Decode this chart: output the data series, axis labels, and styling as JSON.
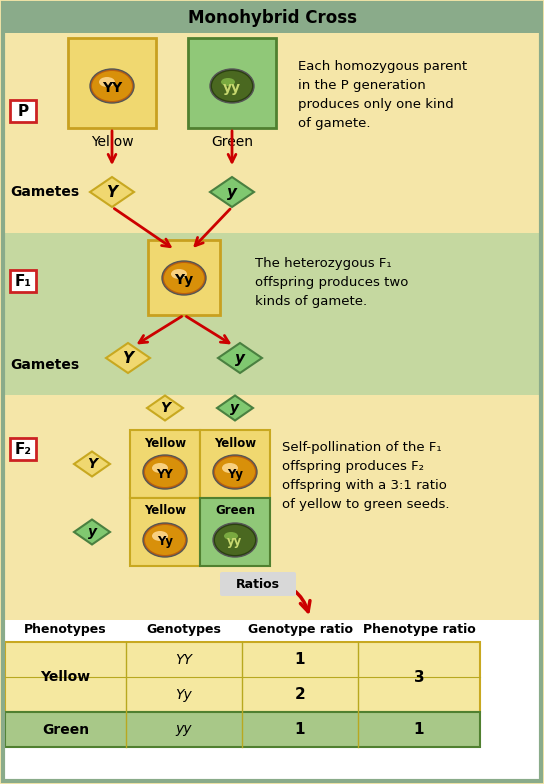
{
  "title": "Monohybrid Cross",
  "title_bg": "#8aab8a",
  "section_p_bg": "#f5e6a8",
  "section_f1_bg": "#c5d8a0",
  "section_f2_bg": "#f5e6a8",
  "yellow_box_bg": "#f0d870",
  "green_box_bg": "#90c878",
  "p_text": "P",
  "f1_text": "F₁",
  "f2_text": "F₂",
  "p_desc": "Each homozygous parent\nin the P generation\nproduces only one kind\nof gamete.",
  "f1_desc": "The heterozygous F₁\noffspring produces two\nkinds of gamete.",
  "f2_desc": "Self-pollination of the F₁\noffspring produces F₂\noffspring with a 3:1 ratio\nof yellow to green seeds.",
  "gametes_label": "Gametes",
  "yellow_seed_color": "#d8900a",
  "yellow_seed_highlight": "#f0c060",
  "green_seed_color": "#4a6820",
  "green_seed_mid": "#6a8830",
  "arrow_color": "#cc0000",
  "diamond_yellow_fill": "#f0d870",
  "diamond_yellow_edge": "#c8a820",
  "diamond_green_fill": "#80c870",
  "diamond_green_edge": "#4a8040",
  "label_box_red": "#cc2222",
  "table_yellow_bg": "#f5e8a0",
  "table_green_bg": "#a8c888",
  "outer_border": "#8aab8a",
  "ratios_bg": "#d8d8d8"
}
